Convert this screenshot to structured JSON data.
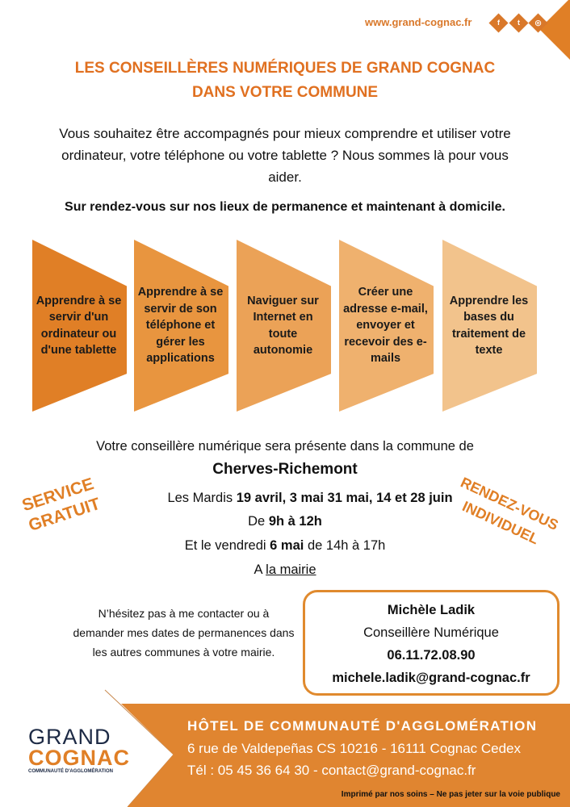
{
  "header": {
    "website": "www.grand-cognac.fr",
    "social_icons": [
      "facebook-icon",
      "twitter-icon",
      "instagram-icon"
    ]
  },
  "title": {
    "line1": "LES CONSEILLÈRES NUMÉRIQUES DE GRAND COGNAC",
    "line2": "DANS VOTRE COMMUNE"
  },
  "intro": {
    "line1": "Vous souhaitez être accompagnés pour mieux comprendre et utiliser votre",
    "line2": "ordinateur, votre téléphone ou votre tablette ? Nous sommes là pour vous",
    "line3": "aider.",
    "highlight": "Sur rendez-vous sur nos lieux de permanence et maintenant à domicile."
  },
  "steps": [
    {
      "label": "Apprendre à se servir d'un ordinateur ou d'une tablette",
      "color": "#e07f26"
    },
    {
      "label": "Apprendre à se servir de son téléphone et gérer les applications",
      "color": "#e8953f"
    },
    {
      "label": "Naviguer sur Internet en toute autonomie",
      "color": "#eba257"
    },
    {
      "label": "Créer une adresse e-mail, envoyer et recevoir des e-mails",
      "color": "#efb16e"
    },
    {
      "label": "Apprendre les bases du traitement de texte",
      "color": "#f2c38c"
    }
  ],
  "schedule": {
    "intro": "Votre conseillère numérique sera présente dans la commune de",
    "commune": "Cherves-Richemont",
    "tuesdays_prefix": "Les Mardis ",
    "tuesdays_dates": "19 avril, 3 mai 31 mai, 14 et 28 juin",
    "hours_prefix": "De ",
    "hours": "9h à 12h",
    "friday_prefix": "Et le vendredi ",
    "friday_date": "6 mai",
    "friday_hours": " de 14h à 17h",
    "place_prefix": "A ",
    "place": "la mairie"
  },
  "stamps": {
    "left_line1": "SERVICE",
    "left_line2": "GRATUIT",
    "right_line1": "RENDEZ-VOUS",
    "right_line2": "INDIVIDUEL"
  },
  "contact_note": "N’hésitez pas à me contacter ou à demander mes dates de permanences dans les autres communes à votre mairie.",
  "advisor": {
    "name": "Michèle Ladik",
    "role": "Conseillère Numérique",
    "phone": "06.11.72.08.90",
    "email": "michele.ladik@grand-cognac.fr"
  },
  "footer": {
    "logo_line1": "GRAND",
    "logo_line2": "COGNAC",
    "logo_line3": "COMMUNAUTÉ D'AGGLOMÉRATION",
    "heading": "HÔTEL DE COMMUNAUTÉ D'AGGLOMÉRATION",
    "address": "6 rue de Valdepeñas CS 10216 - 16111 Cognac Cedex",
    "contact": "Tél : 05 45 36 64 30 - contact@grand-cognac.fr",
    "notice": "Imprimé par nos soins – Ne pas jeter sur la voie publique"
  },
  "colors": {
    "brand_orange": "#e07f26",
    "title_orange": "#e07020"
  }
}
